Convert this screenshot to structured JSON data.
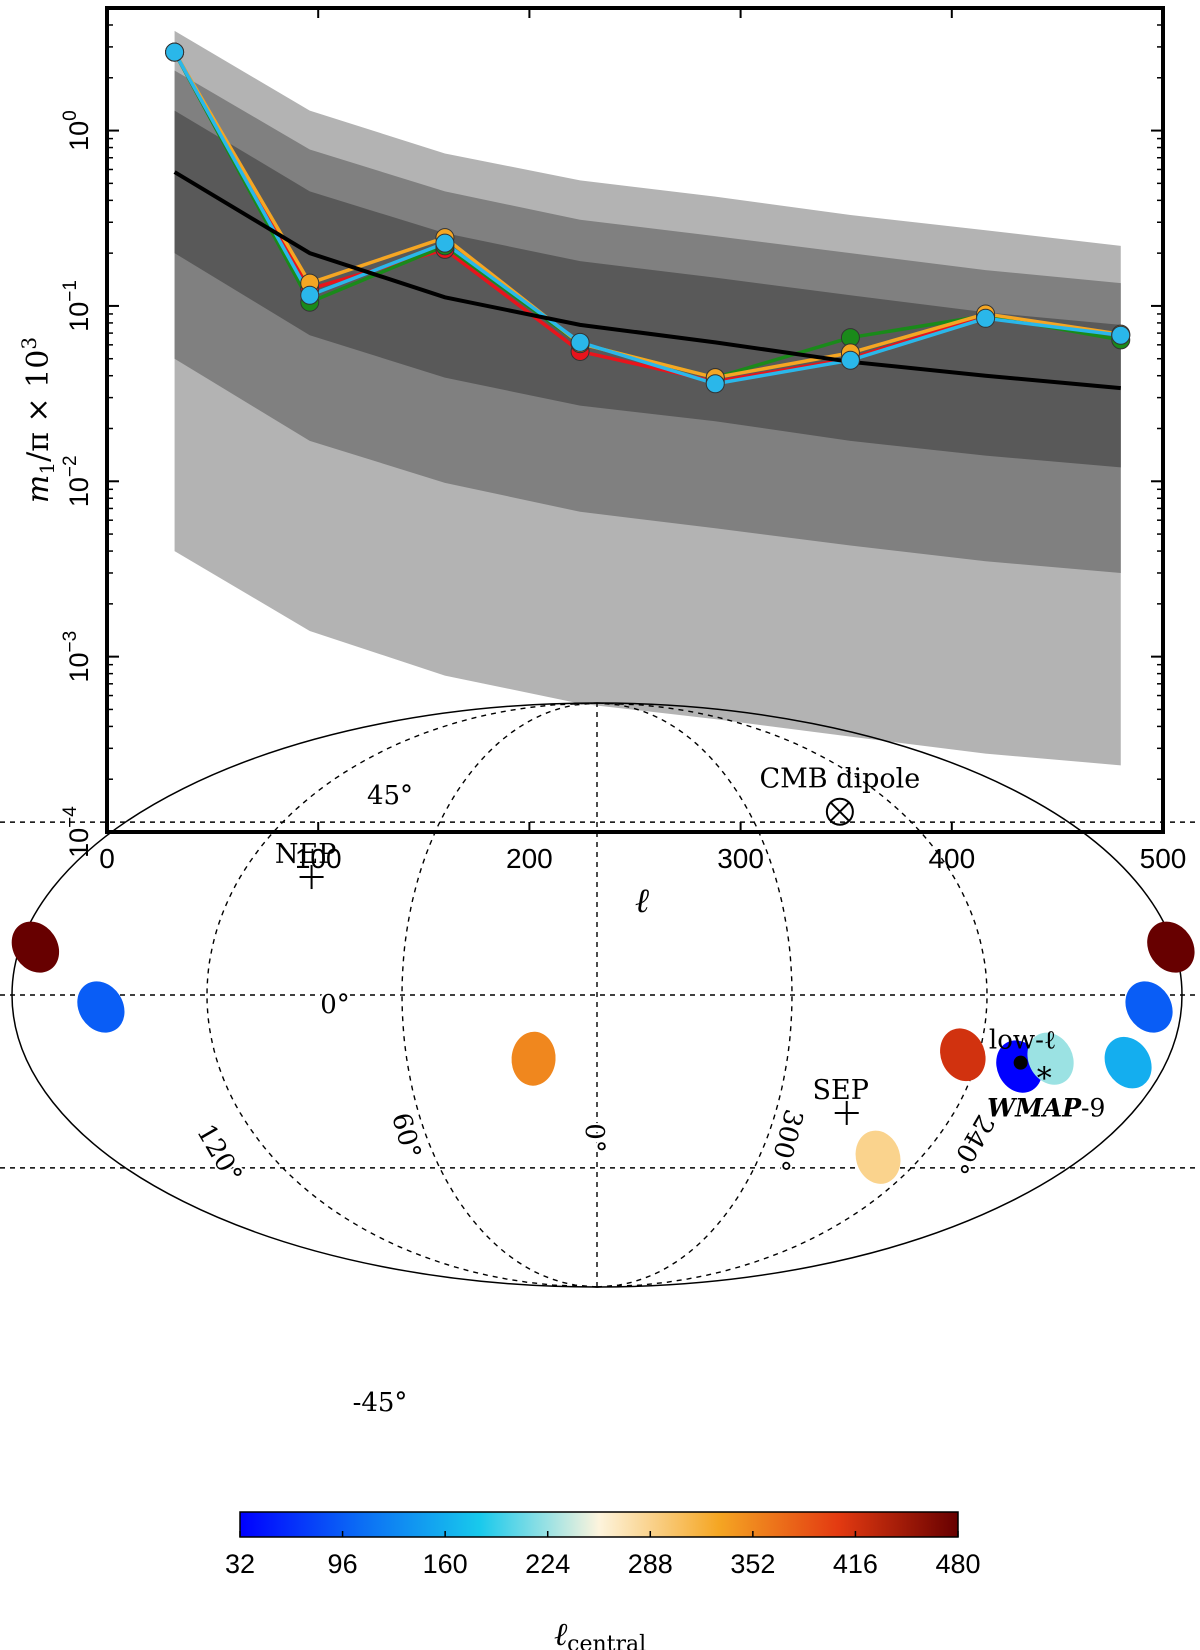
{
  "chart_data": [
    {
      "type": "line",
      "xlabel": "ℓ",
      "ylabel_parts": [
        "m",
        "1",
        "/π × 10",
        "3"
      ],
      "yscale": "log",
      "xlim": [
        0,
        500
      ],
      "ylim": [
        0.0001,
        5
      ],
      "x_ticks": [
        0,
        100,
        200,
        300,
        400,
        500
      ],
      "y_ticks": [
        {
          "value": 0.0001,
          "base": "10",
          "exp": "−4"
        },
        {
          "value": 0.001,
          "base": "10",
          "exp": "−3"
        },
        {
          "value": 0.01,
          "base": "10",
          "exp": "−2"
        },
        {
          "value": 0.1,
          "base": "10",
          "exp": "−1"
        },
        {
          "value": 1,
          "base": "10",
          "exp": "0"
        }
      ],
      "x": [
        32,
        96,
        160,
        224,
        288,
        352,
        416,
        480
      ],
      "bands": [
        {
          "color": "#b3b3b3",
          "lower": [
            0.004,
            0.0014,
            0.00078,
            0.00054,
            0.00044,
            0.00035,
            0.00028,
            0.00024
          ],
          "upper": [
            3.7,
            1.3,
            0.74,
            0.52,
            0.42,
            0.33,
            0.27,
            0.22
          ]
        },
        {
          "color": "#808080",
          "lower": [
            0.05,
            0.017,
            0.0098,
            0.0067,
            0.0054,
            0.0043,
            0.0035,
            0.003
          ],
          "upper": [
            2.2,
            0.78,
            0.45,
            0.31,
            0.25,
            0.2,
            0.16,
            0.135
          ]
        },
        {
          "color": "#595959",
          "lower": [
            0.2,
            0.068,
            0.039,
            0.027,
            0.022,
            0.017,
            0.014,
            0.012
          ],
          "upper": [
            1.3,
            0.45,
            0.26,
            0.18,
            0.145,
            0.115,
            0.092,
            0.078
          ]
        }
      ],
      "mean_line": {
        "color": "#000000",
        "values": [
          0.58,
          0.2,
          0.112,
          0.078,
          0.062,
          0.048,
          0.04,
          0.034
        ]
      },
      "series": [
        {
          "color": "#e8141c",
          "values": [
            2.8,
            0.125,
            0.21,
            0.055,
            0.037,
            0.05,
            0.088,
            0.068
          ]
        },
        {
          "color": "#1a8a1a",
          "values": [
            2.8,
            0.105,
            0.22,
            0.061,
            0.039,
            0.066,
            0.088,
            0.064
          ]
        },
        {
          "color": "#f5a623",
          "values": [
            2.8,
            0.135,
            0.245,
            0.061,
            0.039,
            0.054,
            0.09,
            0.069
          ]
        },
        {
          "color": "#2ab7ea",
          "values": [
            2.8,
            0.115,
            0.228,
            0.062,
            0.036,
            0.049,
            0.085,
            0.068
          ]
        }
      ]
    },
    {
      "type": "scatter",
      "projection": "mollweide",
      "grid_longitude_labels": [
        "120°",
        "60°",
        "0°",
        "300°",
        "240°"
      ],
      "grid_latitude_labels": [
        "45°",
        "0°",
        "-45°"
      ],
      "markers": [
        {
          "label": "CMB dipole",
          "symbol": "⊗",
          "lon": 264,
          "lat": 48
        },
        {
          "label": "NEP",
          "symbol": "+",
          "lon": 96,
          "lat": 30
        },
        {
          "label": "SEP",
          "symbol": "+",
          "lon": 276,
          "lat": -30
        },
        {
          "label": "low-ℓ",
          "symbol": "●",
          "lon": 226,
          "lat": -17
        },
        {
          "label_main": "WMAP",
          "label_suffix": "-9",
          "symbol": "*",
          "lon": 217,
          "lat": -20
        }
      ],
      "directions": [
        {
          "l_central": 32,
          "lon": 226,
          "lat": -18
        },
        {
          "l_central": 96,
          "lon": 190,
          "lat": -3
        },
        {
          "l_central": 160,
          "lon": 192,
          "lat": -17
        },
        {
          "l_central": 224,
          "lon": 217,
          "lat": -16
        },
        {
          "l_central": 288,
          "lon": 256,
          "lat": -42
        },
        {
          "l_central": 352,
          "lon": 20,
          "lat": -16
        },
        {
          "l_central": 416,
          "lon": 245,
          "lat": -15
        },
        {
          "l_central": 480,
          "lon": 181,
          "lat": 12
        }
      ],
      "colorbar": {
        "label_main": "ℓ",
        "label_sub": "central",
        "ticks": [
          32,
          96,
          160,
          224,
          288,
          352,
          416,
          480
        ],
        "range": [
          32,
          480
        ],
        "colors": [
          "#0000ff",
          "#0b6cf5",
          "#18c9ec",
          "#fdf4dd",
          "#f5a623",
          "#e33a11",
          "#670000"
        ]
      }
    }
  ]
}
